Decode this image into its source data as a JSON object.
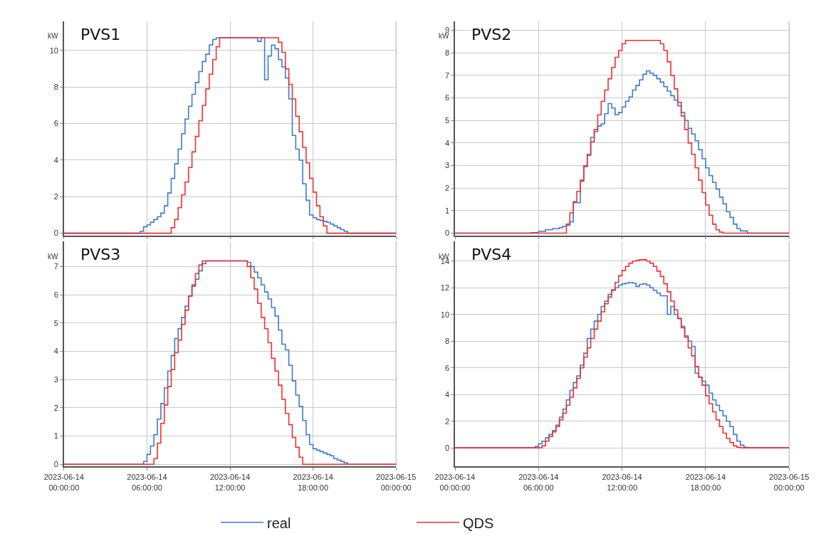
{
  "chart_data": [
    {
      "type": "step",
      "title": "PVS1",
      "ylabel": "kW",
      "xlim": [
        "2023-06-14T00:00",
        "2023-06-15T00:00"
      ],
      "ylim": [
        -0.12,
        11.6
      ],
      "yticks": [
        0,
        2,
        4,
        6,
        8,
        10
      ],
      "xticks": [
        {
          "value": "2023-06-14T00:00",
          "label": null
        },
        {
          "value": "2023-06-14T06:00",
          "label": null
        },
        {
          "value": "2023-06-14T12:00",
          "label": null
        },
        {
          "value": "2023-06-14T18:00",
          "label": null
        },
        {
          "value": "2023-06-15T00:00",
          "label": null
        }
      ],
      "tick_labels": "y",
      "grid": true,
      "series": [
        {
          "color": "#3a7bd5",
          "x": [
            "2023-06-14T00:00",
            "2023-06-14T05:30",
            "2023-06-14T05:45",
            "2023-06-14T06:00",
            "2023-06-14T06:15",
            "2023-06-14T06:30",
            "2023-06-14T06:45",
            "2023-06-14T07:00",
            "2023-06-14T07:15",
            "2023-06-14T07:30",
            "2023-06-14T07:45",
            "2023-06-14T08:00",
            "2023-06-14T08:15",
            "2023-06-14T08:30",
            "2023-06-14T08:45",
            "2023-06-14T09:00",
            "2023-06-14T09:15",
            "2023-06-14T09:30",
            "2023-06-14T09:45",
            "2023-06-14T10:00",
            "2023-06-14T10:15",
            "2023-06-14T10:30",
            "2023-06-14T10:45",
            "2023-06-14T11:00",
            "2023-06-14T14:00",
            "2023-06-14T14:15",
            "2023-06-14T14:30",
            "2023-06-14T14:45",
            "2023-06-14T15:00",
            "2023-06-14T15:15",
            "2023-06-14T15:30",
            "2023-06-14T15:45",
            "2023-06-14T16:00",
            "2023-06-14T16:15",
            "2023-06-14T16:30",
            "2023-06-14T16:45",
            "2023-06-14T17:00",
            "2023-06-14T17:15",
            "2023-06-14T17:30",
            "2023-06-14T17:45",
            "2023-06-14T18:00",
            "2023-06-14T18:15",
            "2023-06-14T18:30",
            "2023-06-14T18:45",
            "2023-06-14T19:00",
            "2023-06-14T19:15",
            "2023-06-14T19:30",
            "2023-06-14T19:45",
            "2023-06-14T20:00",
            "2023-06-14T20:15",
            "2023-06-14T20:30",
            "2023-06-15T00:00"
          ],
          "values": [
            0,
            0.1,
            0.35,
            0.45,
            0.6,
            0.75,
            0.9,
            1.1,
            1.5,
            2.2,
            3.0,
            3.8,
            4.6,
            5.45,
            6.25,
            6.95,
            7.6,
            8.25,
            8.85,
            9.4,
            9.8,
            10.3,
            10.6,
            10.7,
            10.5,
            10.7,
            8.4,
            9.7,
            10.3,
            10.1,
            9.5,
            9.1,
            8.5,
            7.35,
            5.35,
            4.6,
            4.0,
            2.7,
            1.8,
            1.0,
            0.85,
            0.75,
            0.7,
            0.65,
            0.6,
            0.5,
            0.4,
            0.3,
            0.2,
            0.1,
            0,
            0
          ]
        },
        {
          "color": "#f03030",
          "x": [
            "2023-06-14T00:00",
            "2023-06-14T07:45",
            "2023-06-14T08:00",
            "2023-06-14T08:15",
            "2023-06-14T08:30",
            "2023-06-14T08:45",
            "2023-06-14T09:00",
            "2023-06-14T09:15",
            "2023-06-14T09:30",
            "2023-06-14T09:45",
            "2023-06-14T10:00",
            "2023-06-14T10:15",
            "2023-06-14T10:30",
            "2023-06-14T10:45",
            "2023-06-14T11:00",
            "2023-06-14T11:15",
            "2023-06-14T15:30",
            "2023-06-14T15:45",
            "2023-06-14T16:00",
            "2023-06-14T16:15",
            "2023-06-14T16:30",
            "2023-06-14T16:45",
            "2023-06-14T17:00",
            "2023-06-14T17:15",
            "2023-06-14T17:30",
            "2023-06-14T17:45",
            "2023-06-14T18:00",
            "2023-06-14T18:15",
            "2023-06-14T18:30",
            "2023-06-14T18:45",
            "2023-06-14T19:00",
            "2023-06-15T00:00"
          ],
          "values": [
            0,
            0.3,
            0.75,
            1.4,
            2.1,
            2.8,
            3.6,
            4.45,
            5.3,
            6.15,
            7.0,
            7.9,
            8.7,
            9.5,
            10.2,
            10.7,
            10.45,
            9.9,
            9.0,
            8.15,
            7.35,
            6.4,
            5.55,
            4.7,
            3.85,
            3.0,
            2.25,
            1.5,
            0.9,
            0.4,
            0,
            0
          ]
        }
      ]
    },
    {
      "type": "step",
      "title": "PVS2",
      "ylabel": "kW",
      "xlim": [
        "2023-06-14T00:00",
        "2023-06-15T00:00"
      ],
      "ylim": [
        -0.1,
        9.4
      ],
      "yticks": [
        0,
        1,
        2,
        3,
        4,
        5,
        6,
        7,
        8,
        9
      ],
      "xticks": [
        {
          "value": "2023-06-14T00:00",
          "label": null
        },
        {
          "value": "2023-06-14T06:00",
          "label": null
        },
        {
          "value": "2023-06-14T12:00",
          "label": null
        },
        {
          "value": "2023-06-14T18:00",
          "label": null
        },
        {
          "value": "2023-06-15T00:00",
          "label": null
        }
      ],
      "tick_labels": "y",
      "grid": true,
      "series": [
        {
          "color": "#3a7bd5",
          "x": [
            "2023-06-14T00:00",
            "2023-06-14T05:30",
            "2023-06-14T06:00",
            "2023-06-14T06:30",
            "2023-06-14T07:00",
            "2023-06-14T07:30",
            "2023-06-14T07:45",
            "2023-06-14T08:00",
            "2023-06-14T08:15",
            "2023-06-14T08:30",
            "2023-06-14T09:00",
            "2023-06-14T09:15",
            "2023-06-14T09:30",
            "2023-06-14T09:45",
            "2023-06-14T10:00",
            "2023-06-14T10:15",
            "2023-06-14T10:30",
            "2023-06-14T10:45",
            "2023-06-14T11:00",
            "2023-06-14T11:15",
            "2023-06-14T11:30",
            "2023-06-14T11:45",
            "2023-06-14T12:00",
            "2023-06-14T12:15",
            "2023-06-14T12:30",
            "2023-06-14T12:45",
            "2023-06-14T13:00",
            "2023-06-14T13:15",
            "2023-06-14T13:30",
            "2023-06-14T13:45",
            "2023-06-14T14:00",
            "2023-06-14T14:15",
            "2023-06-14T14:30",
            "2023-06-14T14:45",
            "2023-06-14T15:00",
            "2023-06-14T15:15",
            "2023-06-14T15:30",
            "2023-06-14T15:45",
            "2023-06-14T16:00",
            "2023-06-14T16:15",
            "2023-06-14T16:30",
            "2023-06-14T16:45",
            "2023-06-14T17:00",
            "2023-06-14T17:15",
            "2023-06-14T17:30",
            "2023-06-14T17:45",
            "2023-06-14T18:00",
            "2023-06-14T18:15",
            "2023-06-14T18:30",
            "2023-06-14T18:45",
            "2023-06-14T19:00",
            "2023-06-14T19:15",
            "2023-06-14T19:30",
            "2023-06-14T19:45",
            "2023-06-14T20:00",
            "2023-06-14T20:15",
            "2023-06-14T20:30",
            "2023-06-14T21:00",
            "2023-06-15T00:00"
          ],
          "values": [
            0,
            0.02,
            0.08,
            0.15,
            0.2,
            0.25,
            0.3,
            0.35,
            0.5,
            1.35,
            2.3,
            3.0,
            3.45,
            4.25,
            4.5,
            4.75,
            4.85,
            5.3,
            5.75,
            5.55,
            5.25,
            5.35,
            5.6,
            5.85,
            6.05,
            6.35,
            6.55,
            6.8,
            7.05,
            7.2,
            7.1,
            7.0,
            6.85,
            6.7,
            6.5,
            6.3,
            6.1,
            5.9,
            5.65,
            5.35,
            5.0,
            4.65,
            4.4,
            4.1,
            3.7,
            3.3,
            2.9,
            2.55,
            2.25,
            1.95,
            1.6,
            1.3,
            0.95,
            0.7,
            0.4,
            0.2,
            0.1,
            0,
            0
          ]
        },
        {
          "color": "#f03030",
          "x": [
            "2023-06-14T00:00",
            "2023-06-14T08:00",
            "2023-06-14T08:15",
            "2023-06-14T08:30",
            "2023-06-14T08:45",
            "2023-06-14T09:00",
            "2023-06-14T09:15",
            "2023-06-14T09:30",
            "2023-06-14T09:45",
            "2023-06-14T10:00",
            "2023-06-14T10:15",
            "2023-06-14T10:30",
            "2023-06-14T10:45",
            "2023-06-14T11:00",
            "2023-06-14T11:15",
            "2023-06-14T11:30",
            "2023-06-14T11:45",
            "2023-06-14T12:00",
            "2023-06-14T12:15",
            "2023-06-14T14:45",
            "2023-06-14T15:00",
            "2023-06-14T15:15",
            "2023-06-14T15:30",
            "2023-06-14T15:45",
            "2023-06-14T16:00",
            "2023-06-14T16:15",
            "2023-06-14T16:30",
            "2023-06-14T16:45",
            "2023-06-14T17:00",
            "2023-06-14T17:15",
            "2023-06-14T17:30",
            "2023-06-14T17:45",
            "2023-06-14T18:00",
            "2023-06-14T18:15",
            "2023-06-14T18:30",
            "2023-06-14T18:45",
            "2023-06-14T19:00",
            "2023-06-14T19:15",
            "2023-06-15T00:00"
          ],
          "values": [
            0,
            0.4,
            0.9,
            1.4,
            1.85,
            2.35,
            2.95,
            3.5,
            4.05,
            4.6,
            5.25,
            5.85,
            6.35,
            6.85,
            7.35,
            7.8,
            8.1,
            8.4,
            8.55,
            8.4,
            8.1,
            7.6,
            7.0,
            6.4,
            5.8,
            5.2,
            4.6,
            4.0,
            3.5,
            2.9,
            2.35,
            1.8,
            1.25,
            0.8,
            0.4,
            0.15,
            0.05,
            0,
            0
          ]
        }
      ]
    },
    {
      "type": "step",
      "title": "PVS3",
      "ylabel": "kW",
      "xlim": [
        "2023-06-14T00:00",
        "2023-06-15T00:00"
      ],
      "ylim": [
        -0.08,
        7.9
      ],
      "yticks": [
        0,
        1,
        2,
        3,
        4,
        5,
        6,
        7
      ],
      "xticks": [
        {
          "value": "2023-06-14T00:00",
          "label": "2023-06-14\n00:00:00"
        },
        {
          "value": "2023-06-14T06:00",
          "label": "2023-06-14\n06:00:00"
        },
        {
          "value": "2023-06-14T12:00",
          "label": "2023-06-14\n12:00:00"
        },
        {
          "value": "2023-06-14T18:00",
          "label": "2023-06-14\n18:00:00"
        },
        {
          "value": "2023-06-15T00:00",
          "label": "2023-06-15\n00:00:00"
        }
      ],
      "grid": true,
      "series": [
        {
          "color": "#3a7bd5",
          "x": [
            "2023-06-14T00:00",
            "2023-06-14T05:45",
            "2023-06-14T06:00",
            "2023-06-14T06:15",
            "2023-06-14T06:30",
            "2023-06-14T06:45",
            "2023-06-14T07:00",
            "2023-06-14T07:15",
            "2023-06-14T07:30",
            "2023-06-14T07:45",
            "2023-06-14T08:00",
            "2023-06-14T08:15",
            "2023-06-14T08:30",
            "2023-06-14T08:45",
            "2023-06-14T09:00",
            "2023-06-14T09:15",
            "2023-06-14T09:30",
            "2023-06-14T09:45",
            "2023-06-14T10:00",
            "2023-06-14T10:15",
            "2023-06-14T13:15",
            "2023-06-14T13:30",
            "2023-06-14T13:45",
            "2023-06-14T14:00",
            "2023-06-14T14:15",
            "2023-06-14T14:30",
            "2023-06-14T14:45",
            "2023-06-14T15:00",
            "2023-06-14T15:15",
            "2023-06-14T15:30",
            "2023-06-14T15:45",
            "2023-06-14T16:00",
            "2023-06-14T16:15",
            "2023-06-14T16:30",
            "2023-06-14T16:45",
            "2023-06-14T17:00",
            "2023-06-14T17:15",
            "2023-06-14T17:30",
            "2023-06-14T17:45",
            "2023-06-14T18:00",
            "2023-06-14T18:15",
            "2023-06-14T18:30",
            "2023-06-14T18:45",
            "2023-06-14T19:00",
            "2023-06-14T19:15",
            "2023-06-14T19:30",
            "2023-06-14T19:45",
            "2023-06-14T20:00",
            "2023-06-14T20:15",
            "2023-06-14T20:30",
            "2023-06-15T00:00"
          ],
          "values": [
            0,
            0.1,
            0.35,
            0.65,
            1.05,
            1.6,
            2.15,
            2.7,
            3.3,
            3.85,
            4.45,
            4.8,
            5.2,
            5.6,
            5.95,
            6.3,
            6.55,
            6.85,
            7.1,
            7.2,
            7.15,
            7.0,
            6.8,
            6.6,
            6.35,
            6.1,
            5.85,
            5.55,
            5.25,
            4.75,
            4.25,
            4.05,
            3.5,
            2.95,
            2.45,
            2.05,
            1.55,
            1.05,
            0.7,
            0.55,
            0.5,
            0.45,
            0.4,
            0.35,
            0.3,
            0.2,
            0.15,
            0.1,
            0.05,
            0,
            0
          ]
        },
        {
          "color": "#f03030",
          "x": [
            "2023-06-14T00:00",
            "2023-06-14T06:30",
            "2023-06-14T06:45",
            "2023-06-14T07:00",
            "2023-06-14T07:15",
            "2023-06-14T07:30",
            "2023-06-14T07:45",
            "2023-06-14T08:00",
            "2023-06-14T08:15",
            "2023-06-14T08:30",
            "2023-06-14T08:45",
            "2023-06-14T09:00",
            "2023-06-14T09:15",
            "2023-06-14T09:30",
            "2023-06-14T09:45",
            "2023-06-14T10:00",
            "2023-06-14T13:15",
            "2023-06-14T13:30",
            "2023-06-14T13:45",
            "2023-06-14T14:00",
            "2023-06-14T14:15",
            "2023-06-14T14:30",
            "2023-06-14T14:45",
            "2023-06-14T15:00",
            "2023-06-14T15:15",
            "2023-06-14T15:30",
            "2023-06-14T15:45",
            "2023-06-14T16:00",
            "2023-06-14T16:15",
            "2023-06-14T16:30",
            "2023-06-14T16:45",
            "2023-06-14T17:00",
            "2023-06-14T17:15",
            "2023-06-15T00:00"
          ],
          "values": [
            0,
            0.2,
            0.75,
            1.45,
            2.1,
            2.75,
            3.35,
            3.95,
            4.4,
            4.95,
            5.45,
            5.95,
            6.35,
            6.75,
            7.05,
            7.2,
            7.0,
            6.6,
            6.2,
            5.7,
            5.2,
            4.8,
            4.3,
            3.75,
            3.3,
            2.8,
            2.3,
            1.8,
            1.4,
            0.95,
            0.6,
            0.25,
            0,
            0
          ]
        }
      ]
    },
    {
      "type": "step",
      "title": "PVS4",
      "ylabel": "kW",
      "xlim": [
        "2023-06-14T00:00",
        "2023-06-15T00:00"
      ],
      "ylim": [
        -1.4,
        15.5
      ],
      "yticks": [
        0,
        2,
        4,
        6,
        8,
        10,
        12,
        14
      ],
      "xticks": [
        {
          "value": "2023-06-14T00:00",
          "label": "2023-06-14\n00:00:00"
        },
        {
          "value": "2023-06-14T06:00",
          "label": "2023-06-14\n06:00:00"
        },
        {
          "value": "2023-06-14T12:00",
          "label": "2023-06-14\n12:00:00"
        },
        {
          "value": "2023-06-14T18:00",
          "label": "2023-06-14\n18:00:00"
        },
        {
          "value": "2023-06-15T00:00",
          "label": "2023-06-15\n00:00:00"
        }
      ],
      "grid": true,
      "legend": "bottom",
      "series": [
        {
          "name": "real",
          "color": "#3a7bd5",
          "x": [
            "2023-06-14T00:00",
            "2023-06-14T05:45",
            "2023-06-14T06:00",
            "2023-06-14T06:15",
            "2023-06-14T06:30",
            "2023-06-14T06:45",
            "2023-06-14T07:00",
            "2023-06-14T07:15",
            "2023-06-14T07:30",
            "2023-06-14T07:45",
            "2023-06-14T08:00",
            "2023-06-14T08:15",
            "2023-06-14T08:30",
            "2023-06-14T08:45",
            "2023-06-14T09:00",
            "2023-06-14T09:15",
            "2023-06-14T09:30",
            "2023-06-14T09:45",
            "2023-06-14T10:00",
            "2023-06-14T10:15",
            "2023-06-14T10:30",
            "2023-06-14T10:45",
            "2023-06-14T11:00",
            "2023-06-14T11:15",
            "2023-06-14T11:30",
            "2023-06-14T11:45",
            "2023-06-14T12:00",
            "2023-06-14T12:15",
            "2023-06-14T12:30",
            "2023-06-14T12:45",
            "2023-06-14T13:00",
            "2023-06-14T13:15",
            "2023-06-14T13:30",
            "2023-06-14T13:45",
            "2023-06-14T14:00",
            "2023-06-14T14:15",
            "2023-06-14T14:30",
            "2023-06-14T14:45",
            "2023-06-14T15:15",
            "2023-06-14T15:30",
            "2023-06-14T15:45",
            "2023-06-14T16:00",
            "2023-06-14T16:15",
            "2023-06-14T16:30",
            "2023-06-14T16:45",
            "2023-06-14T17:00",
            "2023-06-14T17:15",
            "2023-06-14T17:30",
            "2023-06-14T17:45",
            "2023-06-14T18:00",
            "2023-06-14T18:15",
            "2023-06-14T18:30",
            "2023-06-14T18:45",
            "2023-06-14T19:00",
            "2023-06-14T19:15",
            "2023-06-14T19:30",
            "2023-06-14T19:45",
            "2023-06-14T20:00",
            "2023-06-14T20:15",
            "2023-06-14T20:30",
            "2023-06-14T20:45",
            "2023-06-14T21:00",
            "2023-06-15T00:00"
          ],
          "values": [
            0,
            0.1,
            0.3,
            0.5,
            0.75,
            1.0,
            1.3,
            1.7,
            2.3,
            2.9,
            3.6,
            4.3,
            4.9,
            5.4,
            6.2,
            7.1,
            8.2,
            8.9,
            9.5,
            10.0,
            10.6,
            11.0,
            11.5,
            11.8,
            12.0,
            12.2,
            12.3,
            12.35,
            12.4,
            12.35,
            12.1,
            12.25,
            12.3,
            12.2,
            12.0,
            11.8,
            11.6,
            11.4,
            10.0,
            10.6,
            10.0,
            9.7,
            9.1,
            8.4,
            8.0,
            7.6,
            5.6,
            5.3,
            5.0,
            4.7,
            4.1,
            3.6,
            3.2,
            2.8,
            2.4,
            2.0,
            1.6,
            1.0,
            0.5,
            0.2,
            0.05,
            0,
            0
          ]
        },
        {
          "name": "QDS",
          "color": "#f03030",
          "x": [
            "2023-06-14T00:00",
            "2023-06-14T06:15",
            "2023-06-14T06:30",
            "2023-06-14T06:45",
            "2023-06-14T07:00",
            "2023-06-14T07:15",
            "2023-06-14T07:30",
            "2023-06-14T07:45",
            "2023-06-14T08:00",
            "2023-06-14T08:15",
            "2023-06-14T08:30",
            "2023-06-14T08:45",
            "2023-06-14T09:00",
            "2023-06-14T09:15",
            "2023-06-14T09:30",
            "2023-06-14T09:45",
            "2023-06-14T10:00",
            "2023-06-14T10:15",
            "2023-06-14T10:30",
            "2023-06-14T10:45",
            "2023-06-14T11:00",
            "2023-06-14T11:15",
            "2023-06-14T11:30",
            "2023-06-14T11:45",
            "2023-06-14T12:00",
            "2023-06-14T12:15",
            "2023-06-14T12:30",
            "2023-06-14T12:45",
            "2023-06-14T13:00",
            "2023-06-14T13:15",
            "2023-06-14T13:30",
            "2023-06-14T13:45",
            "2023-06-14T14:00",
            "2023-06-14T14:15",
            "2023-06-14T14:30",
            "2023-06-14T14:45",
            "2023-06-14T15:00",
            "2023-06-14T15:15",
            "2023-06-14T15:30",
            "2023-06-14T15:45",
            "2023-06-14T16:00",
            "2023-06-14T16:15",
            "2023-06-14T16:30",
            "2023-06-14T16:45",
            "2023-06-14T17:00",
            "2023-06-14T17:15",
            "2023-06-14T17:30",
            "2023-06-14T17:45",
            "2023-06-14T18:00",
            "2023-06-14T18:15",
            "2023-06-14T18:30",
            "2023-06-14T18:45",
            "2023-06-14T19:00",
            "2023-06-14T19:15",
            "2023-06-14T19:30",
            "2023-06-14T19:45",
            "2023-06-14T20:00",
            "2023-06-14T20:15",
            "2023-06-14T20:30",
            "2023-06-15T00:00"
          ],
          "values": [
            0,
            0.15,
            0.5,
            0.85,
            1.2,
            1.6,
            2.1,
            2.6,
            3.2,
            3.8,
            4.5,
            5.2,
            6.0,
            6.8,
            7.5,
            8.2,
            8.9,
            9.5,
            10.2,
            10.8,
            11.3,
            11.85,
            12.4,
            12.9,
            13.3,
            13.6,
            13.85,
            14.0,
            14.05,
            14.1,
            14.1,
            14.0,
            13.85,
            13.6,
            13.25,
            12.85,
            12.3,
            11.7,
            11.0,
            10.35,
            9.7,
            9.0,
            8.3,
            7.5,
            6.9,
            6.1,
            5.3,
            4.7,
            3.9,
            3.3,
            2.7,
            2.1,
            1.6,
            1.1,
            0.7,
            0.4,
            0.15,
            0.05,
            0,
            0
          ]
        }
      ]
    }
  ]
}
